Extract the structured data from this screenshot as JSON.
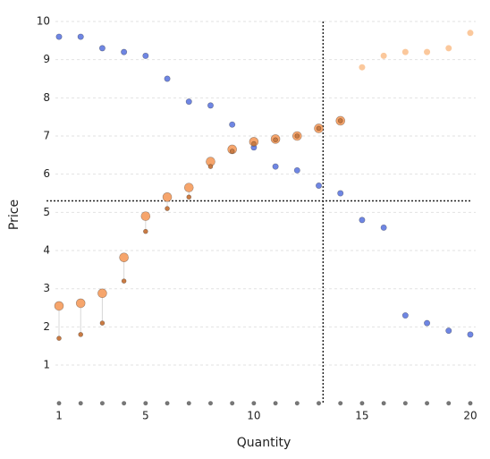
{
  "chart_data": {
    "type": "scatter",
    "x_label": "Quantity",
    "y_label": "Price",
    "x": [
      1,
      2,
      3,
      4,
      5,
      6,
      7,
      8,
      9,
      10,
      11,
      12,
      13,
      14,
      15,
      16,
      17,
      18,
      19,
      20
    ],
    "series": [
      {
        "color": "#6f86e3",
        "values": [
          9.6,
          9.6,
          9.3,
          9.2,
          9.1,
          8.5,
          7.9,
          7.8,
          7.3,
          6.7,
          6.2,
          6.1,
          5.7,
          5.5,
          4.8,
          4.6,
          2.3,
          2.1,
          1.9,
          1.8
        ]
      },
      {
        "color": "#f6a56c",
        "values": [
          2.55,
          2.62,
          2.88,
          3.82,
          4.9,
          5.4,
          5.65,
          6.33,
          6.65,
          6.85,
          6.92,
          7.0,
          7.2,
          7.4,
          null,
          null,
          null,
          null,
          null,
          null
        ]
      },
      {
        "color": "#fbc89c",
        "values": [
          null,
          null,
          null,
          null,
          null,
          null,
          null,
          null,
          null,
          null,
          null,
          null,
          null,
          null,
          8.8,
          9.1,
          9.2,
          9.2,
          9.3,
          9.7
        ]
      },
      {
        "color": "#c97b44",
        "values": [
          1.7,
          1.8,
          2.1,
          3.2,
          4.5,
          5.1,
          5.4,
          6.2,
          6.6,
          6.8,
          6.9,
          7.0,
          7.2,
          7.4,
          null,
          null,
          null,
          null,
          null,
          null
        ]
      },
      {
        "color": "#777777",
        "values": [
          0,
          0,
          0,
          0,
          0,
          0,
          0,
          0,
          0,
          0,
          0,
          0,
          0,
          0,
          0,
          0,
          0,
          0,
          0,
          0
        ]
      }
    ],
    "xlim": [
      0,
      20.6
    ],
    "ylim": [
      0,
      10
    ],
    "xticks": [
      1,
      5,
      10,
      15,
      20
    ],
    "yticks": [
      1,
      2,
      3,
      4,
      5,
      6,
      7,
      8,
      9,
      10
    ],
    "grid": true,
    "vline": 13.2,
    "hline": 5.3
  }
}
